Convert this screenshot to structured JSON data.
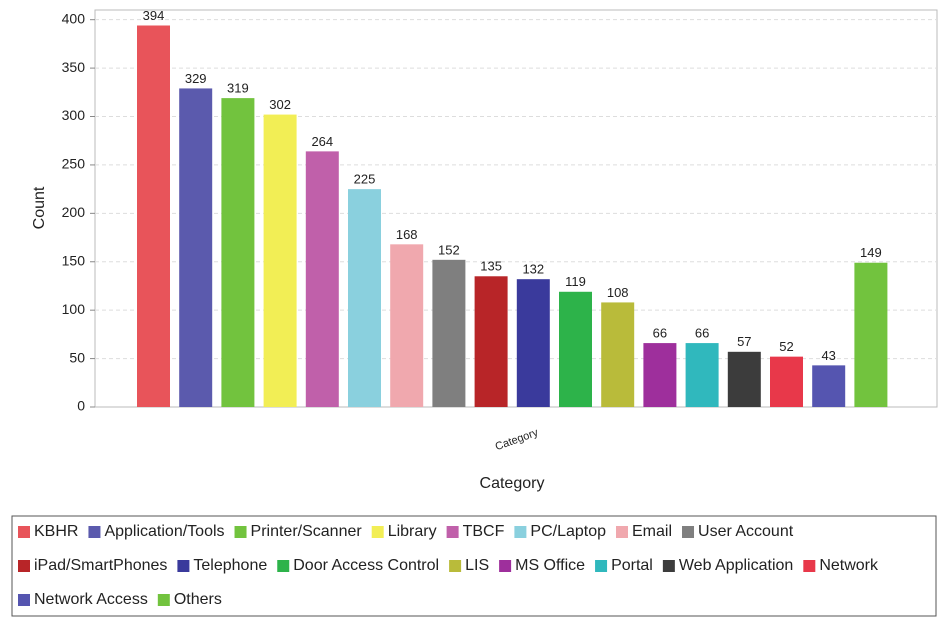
{
  "chart_data": {
    "type": "bar",
    "x_label": "Category",
    "y_label": "Count",
    "categories": [
      "Category"
    ],
    "ylim": [
      0,
      410
    ],
    "yticks": [
      0,
      50,
      100,
      150,
      200,
      250,
      300,
      350,
      400
    ],
    "grid": true,
    "legend": "bottom",
    "series": [
      {
        "name": "KBHR",
        "color": "#e8545a",
        "values": [
          394
        ]
      },
      {
        "name": "Application/Tools",
        "color": "#5b5aad",
        "values": [
          329
        ]
      },
      {
        "name": "Printer/Scanner",
        "color": "#72c33e",
        "values": [
          319
        ]
      },
      {
        "name": "Library",
        "color": "#f2ee55",
        "values": [
          302
        ]
      },
      {
        "name": "TBCF",
        "color": "#c060aa",
        "values": [
          264
        ]
      },
      {
        "name": "PC/Laptop",
        "color": "#8ad0de",
        "values": [
          225
        ]
      },
      {
        "name": "Email",
        "color": "#f0a8ae",
        "values": [
          168
        ]
      },
      {
        "name": "User Account",
        "color": "#7f7f7f",
        "values": [
          152
        ]
      },
      {
        "name": "iPad/SmartPhones",
        "color": "#b82528",
        "values": [
          135
        ]
      },
      {
        "name": "Telephone",
        "color": "#3a3a9c",
        "values": [
          132
        ]
      },
      {
        "name": "Door Access Control",
        "color": "#2db34a",
        "values": [
          119
        ]
      },
      {
        "name": "LIS",
        "color": "#b9bb3a",
        "values": [
          108
        ]
      },
      {
        "name": "MS Office",
        "color": "#9e2f9c",
        "values": [
          66
        ]
      },
      {
        "name": "Portal",
        "color": "#30b8bd",
        "values": [
          66
        ]
      },
      {
        "name": "Web Application",
        "color": "#3c3c3c",
        "values": [
          57
        ]
      },
      {
        "name": "Network",
        "color": "#e8384a",
        "values": [
          52
        ]
      },
      {
        "name": "Network Access",
        "color": "#5555b0",
        "values": [
          43
        ]
      },
      {
        "name": "Others",
        "color": "#72c33e",
        "values": [
          149
        ]
      }
    ]
  }
}
